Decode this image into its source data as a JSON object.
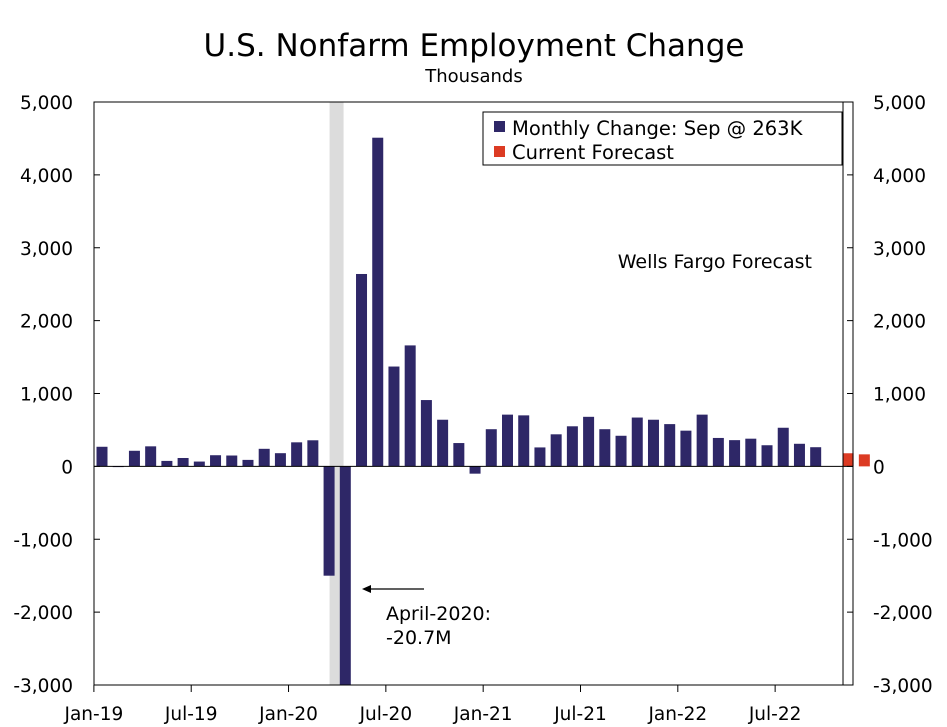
{
  "chart_data": {
    "type": "bar",
    "title": "U.S. Nonfarm Employment Change",
    "subtitle": "Thousands",
    "ylim": [
      -3000,
      5000
    ],
    "y_ticks": [
      5000,
      4000,
      3000,
      2000,
      1000,
      0,
      -1000,
      -2000,
      -3000
    ],
    "y_tick_labels": [
      "5,000",
      "4,000",
      "3,000",
      "2,000",
      "1,000",
      "0",
      "-1,000",
      "-2,000",
      "-3,000"
    ],
    "x_tick_labels": [
      "Jan-19",
      "Jul-19",
      "Jan-20",
      "Jul-20",
      "Jan-21",
      "Jul-21",
      "Jan-22",
      "Jul-22"
    ],
    "x_tick_indices": [
      0,
      6,
      12,
      18,
      24,
      30,
      36,
      42
    ],
    "recession_shade": {
      "start_index": 14,
      "end_index": 15
    },
    "forecast_divider_index": 45.5,
    "series": [
      {
        "name": "Monthly Change: Sep @ 263K",
        "color": "#2e2767",
        "start": "Jan-19",
        "values": [
          269,
          1,
          214,
          275,
          75,
          115,
          66,
          153,
          149,
          89,
          241,
          181,
          330,
          358,
          -1500,
          -3000,
          2640,
          4510,
          1370,
          1660,
          910,
          640,
          320,
          -100,
          510,
          710,
          700,
          260,
          440,
          550,
          680,
          510,
          420,
          670,
          640,
          580,
          490,
          710,
          390,
          360,
          380,
          290,
          530,
          310,
          263
        ]
      },
      {
        "name": "Current Forecast",
        "color": "#dc3b23",
        "start_index": 46,
        "values": [
          180,
          165
        ]
      }
    ],
    "annotations": {
      "forecast_label": "Wells Fargo Forecast",
      "april_line1": "April-2020:",
      "april_line2": "-20.7M"
    }
  }
}
